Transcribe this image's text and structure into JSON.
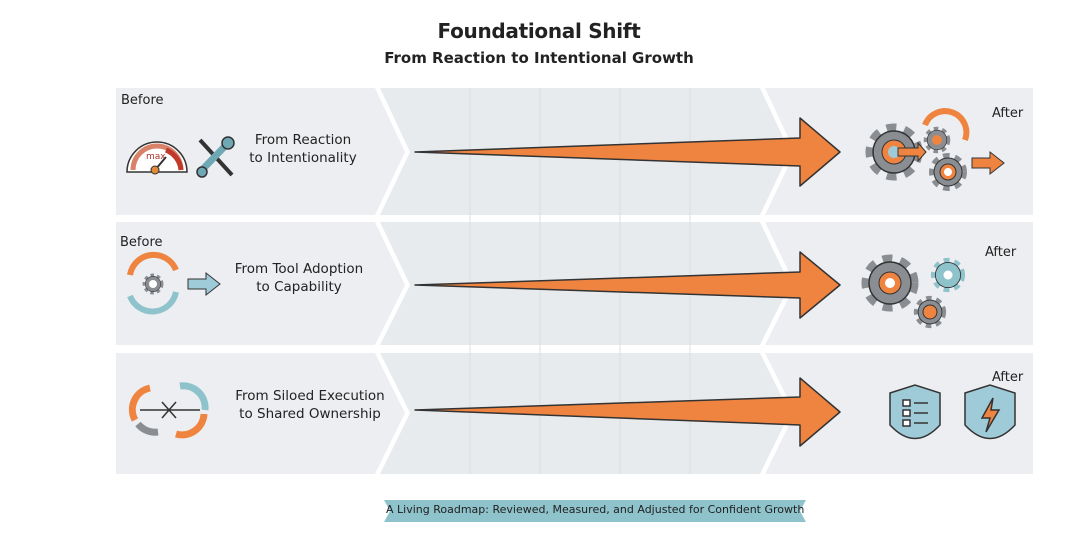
{
  "header": {
    "title": "Foundational Shift",
    "subtitle": "From Reaction to Intentional Growth"
  },
  "rows": [
    {
      "before_label": "Before",
      "shift_line1": "From Reaction",
      "shift_line2": "to Intentionality",
      "after_label": "After",
      "before_icons": [
        "gauge-icon",
        "wrench-icon"
      ],
      "after_icon": "gears-arrow-icon"
    },
    {
      "before_label": "Before",
      "shift_line1": "From Tool Adoption",
      "shift_line2": "to Capability",
      "after_label": "After",
      "before_icons": [
        "cycle-gear-icon"
      ],
      "after_icon": "gear-cluster-icon"
    },
    {
      "before_label": "",
      "shift_line1": "From Siloed Execution",
      "shift_line2": "to Shared Ownership",
      "after_label": "After",
      "before_icons": [
        "broken-cycle-icon"
      ],
      "after_icon": "shields-icon"
    }
  ],
  "gauge_text": "max",
  "footer": {
    "banner": "A Living Roadmap: Reviewed, Measured, and Adjusted for Confident Growth"
  },
  "colors": {
    "orange": "#ef8440",
    "panel": "#eceef1",
    "teal": "#8fc3cc",
    "gray": "#8a8d91",
    "blue": "#9fcbd8"
  }
}
